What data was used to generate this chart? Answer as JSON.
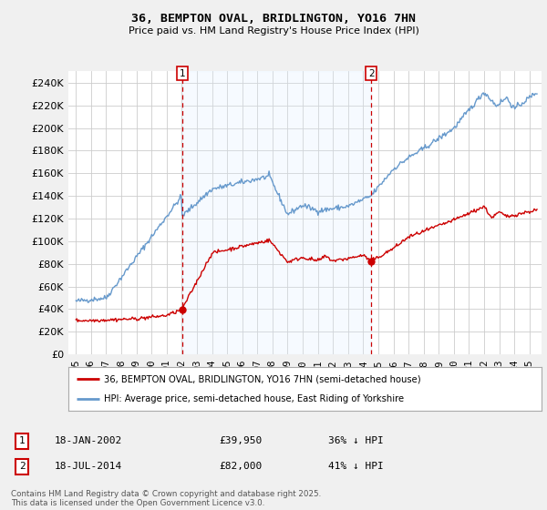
{
  "title": "36, BEMPTON OVAL, BRIDLINGTON, YO16 7HN",
  "subtitle": "Price paid vs. HM Land Registry's House Price Index (HPI)",
  "ylim": [
    0,
    250000
  ],
  "yticks": [
    0,
    20000,
    40000,
    60000,
    80000,
    100000,
    120000,
    140000,
    160000,
    180000,
    200000,
    220000,
    240000
  ],
  "legend_line1": "36, BEMPTON OVAL, BRIDLINGTON, YO16 7HN (semi-detached house)",
  "legend_line2": "HPI: Average price, semi-detached house, East Riding of Yorkshire",
  "point1_date": "18-JAN-2002",
  "point1_price": "£39,950",
  "point1_hpi": "36% ↓ HPI",
  "point1_x": 2002.05,
  "point1_y": 39950,
  "point2_date": "18-JUL-2014",
  "point2_price": "£82,000",
  "point2_hpi": "41% ↓ HPI",
  "point2_x": 2014.54,
  "point2_y": 82000,
  "footer": "Contains HM Land Registry data © Crown copyright and database right 2025.\nThis data is licensed under the Open Government Licence v3.0.",
  "bg_color": "#f0f0f0",
  "plot_bg_color": "#ffffff",
  "shade_color": "#ddeeff",
  "red_color": "#cc0000",
  "blue_color": "#6699cc",
  "grid_color": "#cccccc",
  "dashed_color": "#cc0000",
  "xmin": 1994.5,
  "xmax": 2025.8
}
